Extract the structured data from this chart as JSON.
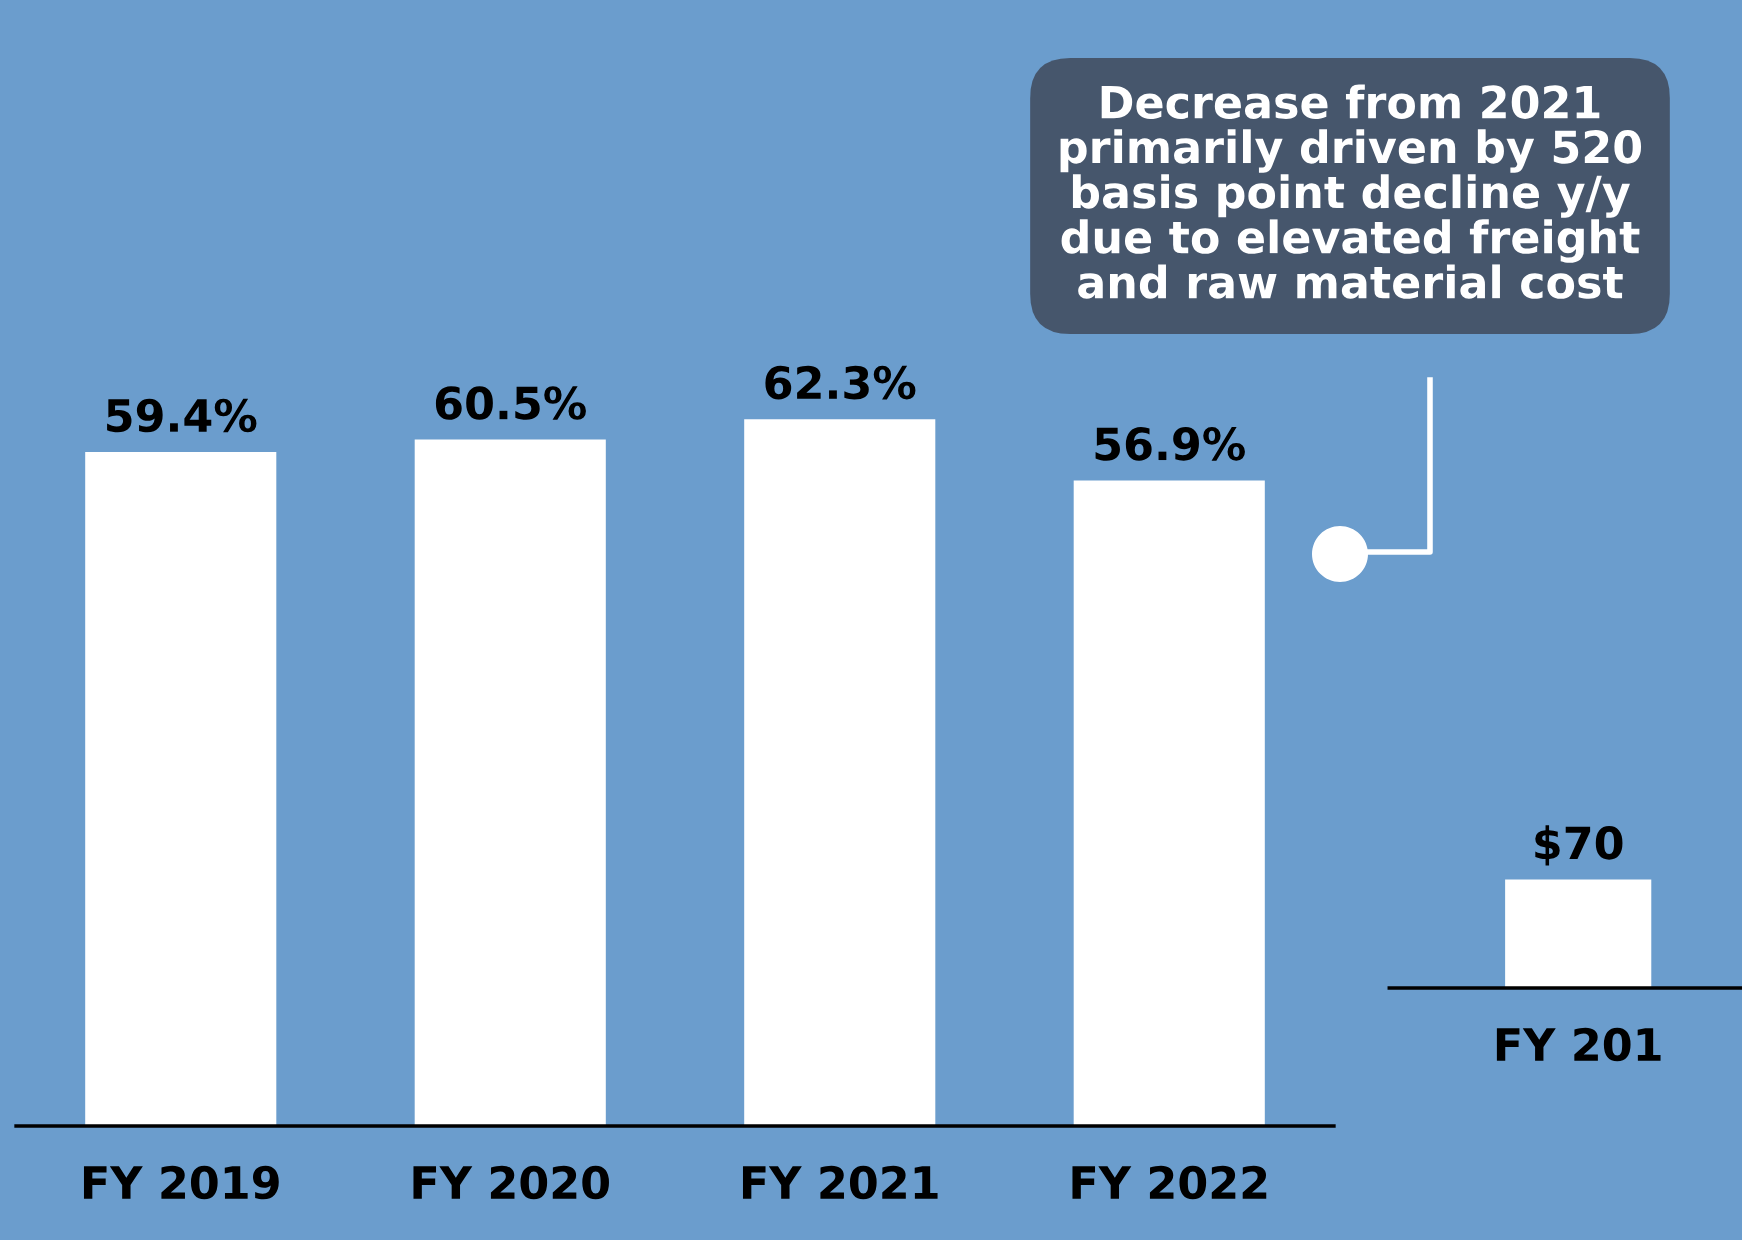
{
  "chart_data": [
    {
      "type": "bar",
      "categories": [
        "FY 2019",
        "FY 2020",
        "FY 2021",
        "FY 2022"
      ],
      "values": [
        59.4,
        60.5,
        62.3,
        56.9
      ],
      "value_labels": [
        "59.4%",
        "60.5%",
        "62.3%",
        "56.9%"
      ],
      "color": "#ffffff",
      "annotations": [
        "Decrease from 2021\nprimarily driven by 520\nbasis point decline y/y\ndue to elevated freight\nand raw material cost"
      ]
    },
    {
      "type": "bar",
      "categories": [
        "FY 201"
      ],
      "values": [
        70
      ],
      "value_labels": [
        "$70"
      ],
      "color": "#ffffff"
    }
  ]
}
